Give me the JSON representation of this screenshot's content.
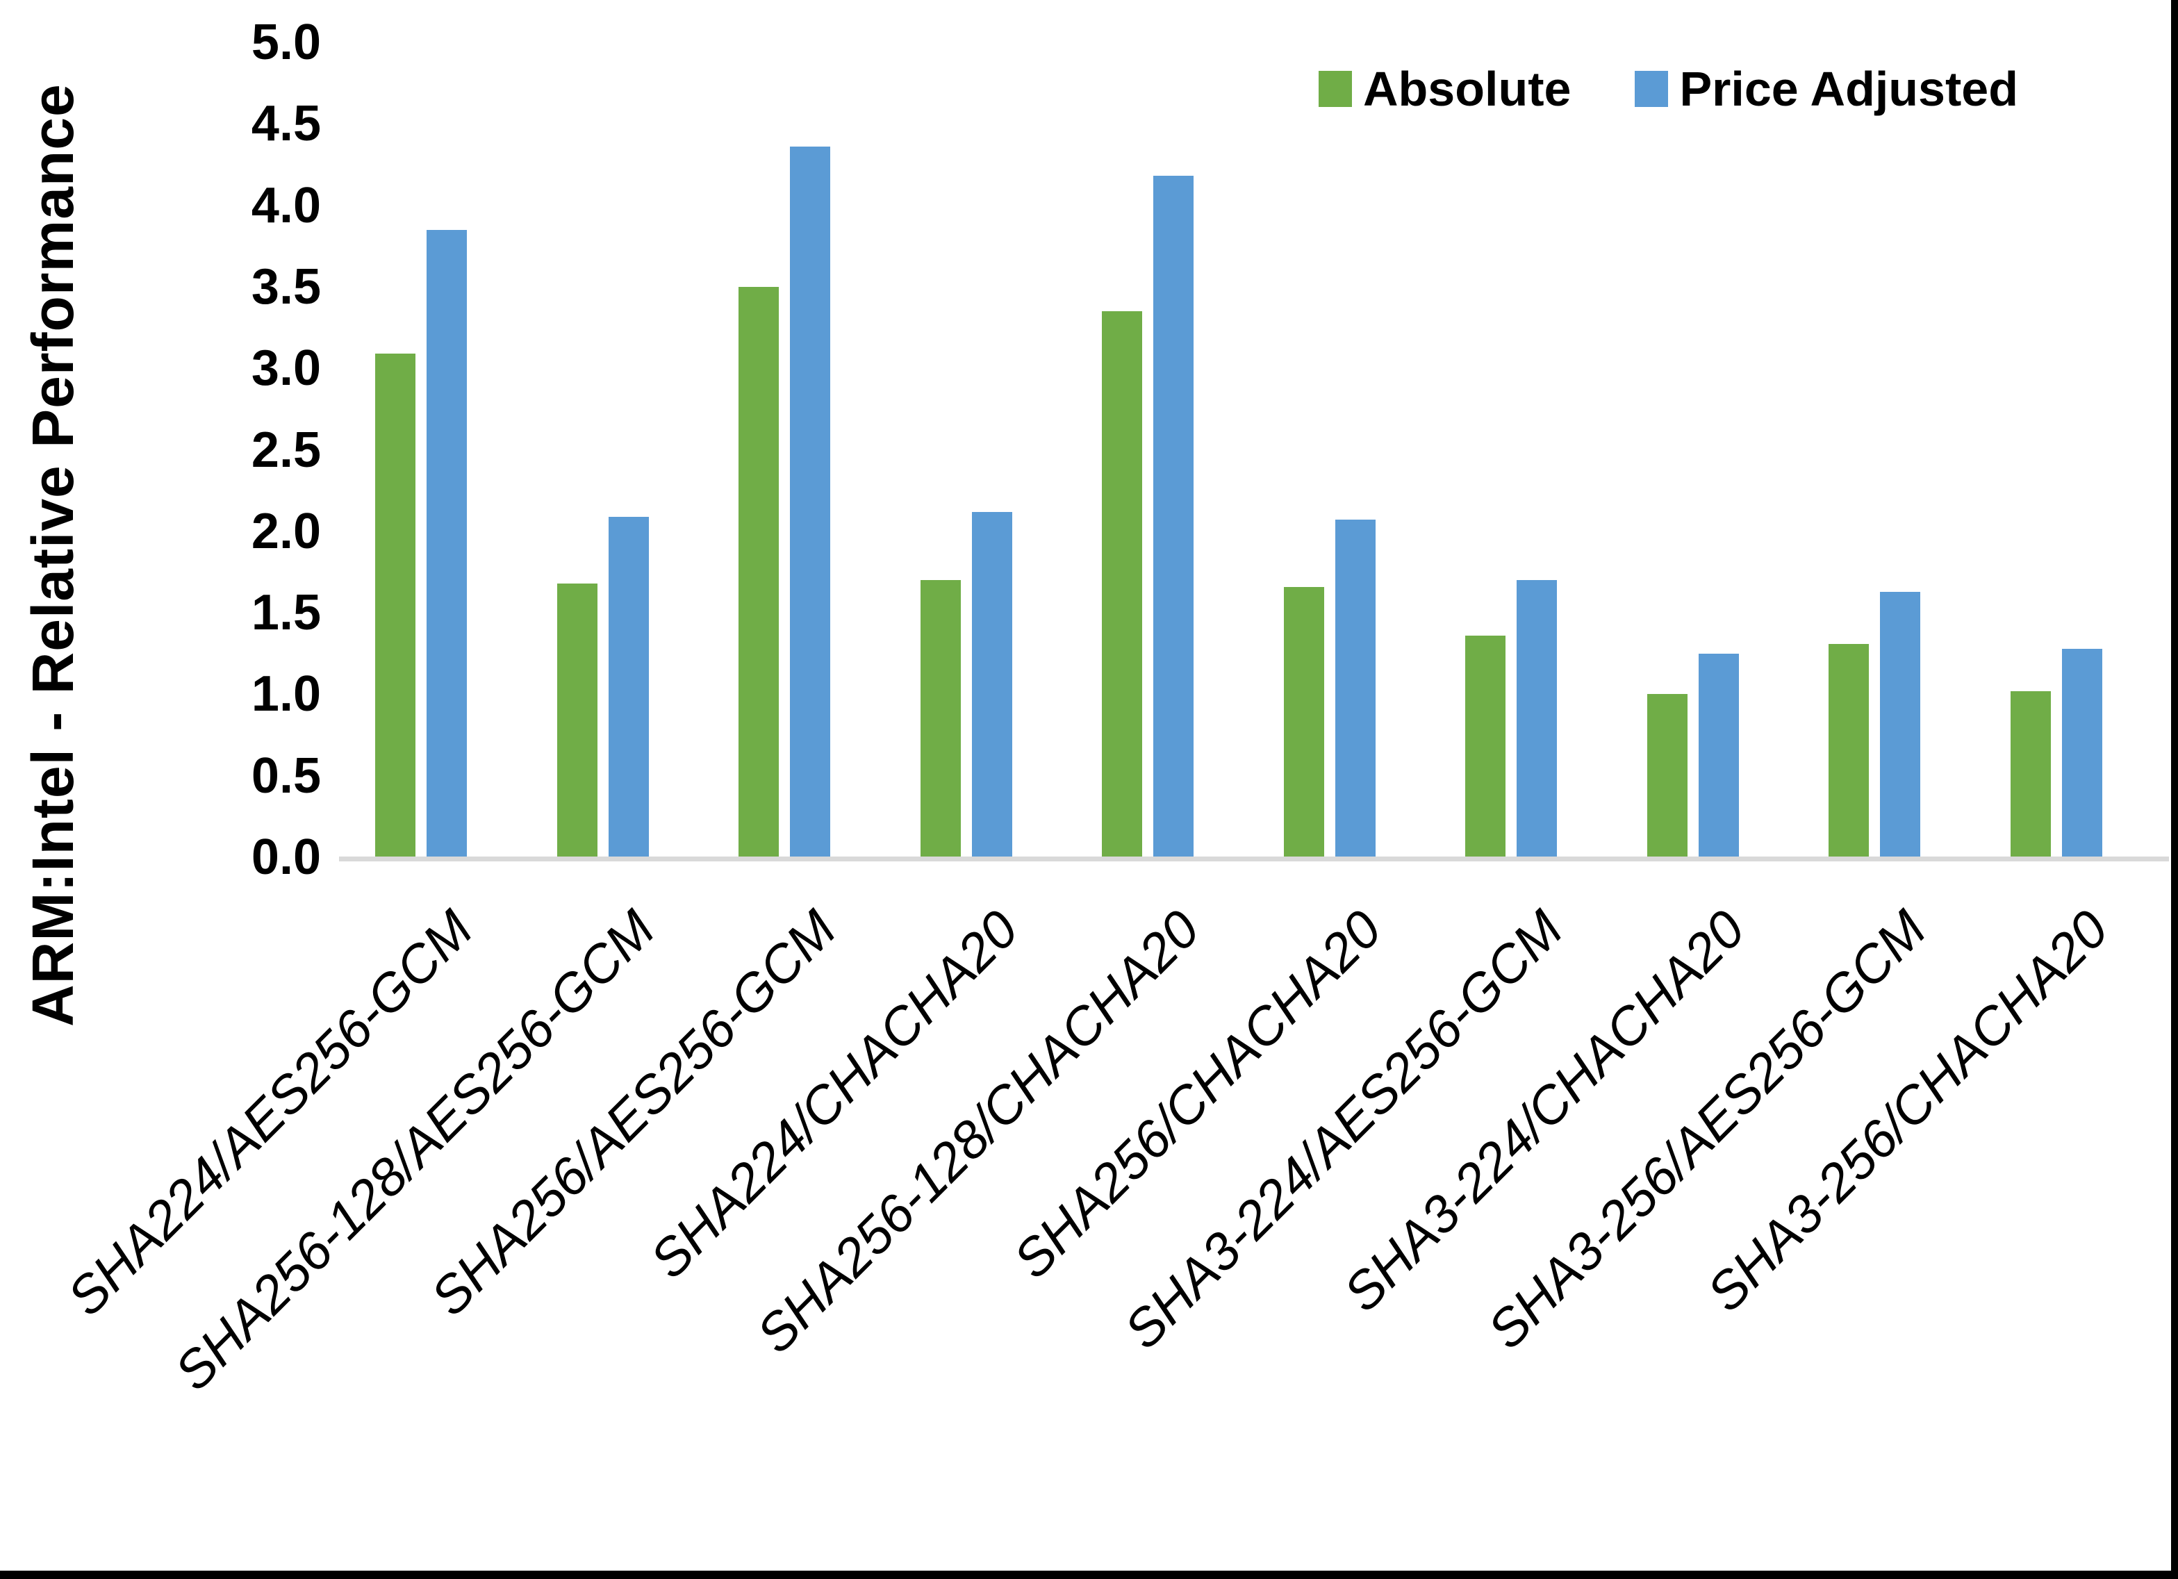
{
  "chart_data": {
    "type": "bar",
    "title": "",
    "ylabel": "ARM:Intel - Relative Performance",
    "xlabel": "",
    "ylim": [
      0.0,
      5.0
    ],
    "ytick_step": 0.5,
    "grid": false,
    "legend_position": "top-right",
    "categories": [
      "SHA224/AES256-GCM",
      "SHA256-128/AES256-GCM",
      "SHA256/AES256-GCM",
      "SHA224/CHACHA20",
      "SHA256-128/CHACHA20",
      "SHA256/CHACHA20",
      "SHA3-224/AES256-GCM",
      "SHA3-224/CHACHA20",
      "SHA3-256/AES256-GCM",
      "SHA3-256/CHACHA20"
    ],
    "series": [
      {
        "name": "Absolute",
        "color": "#70AD47",
        "values": [
          3.09,
          1.68,
          3.5,
          1.7,
          3.35,
          1.66,
          1.36,
          1.0,
          1.31,
          1.02
        ]
      },
      {
        "name": "Price Adjusted",
        "color": "#5B9BD5",
        "values": [
          3.85,
          2.09,
          4.36,
          2.12,
          4.18,
          2.07,
          1.7,
          1.25,
          1.63,
          1.28
        ]
      }
    ]
  },
  "colors": {
    "axis_line": "#D9D9D9",
    "frame": "#000000",
    "background": "#FFFFFF",
    "text": "#000000"
  }
}
